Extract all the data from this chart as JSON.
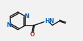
{
  "bg_color": "#f2f2f2",
  "line_color": "#1a1a1a",
  "N_color": "#1060b0",
  "O_color": "#c03030",
  "lw": 1.1,
  "fs": 6.0,
  "figsize": [
    1.21,
    0.61
  ],
  "dpi": 100,
  "xlim": [
    0,
    121
  ],
  "ylim": [
    0,
    61
  ]
}
